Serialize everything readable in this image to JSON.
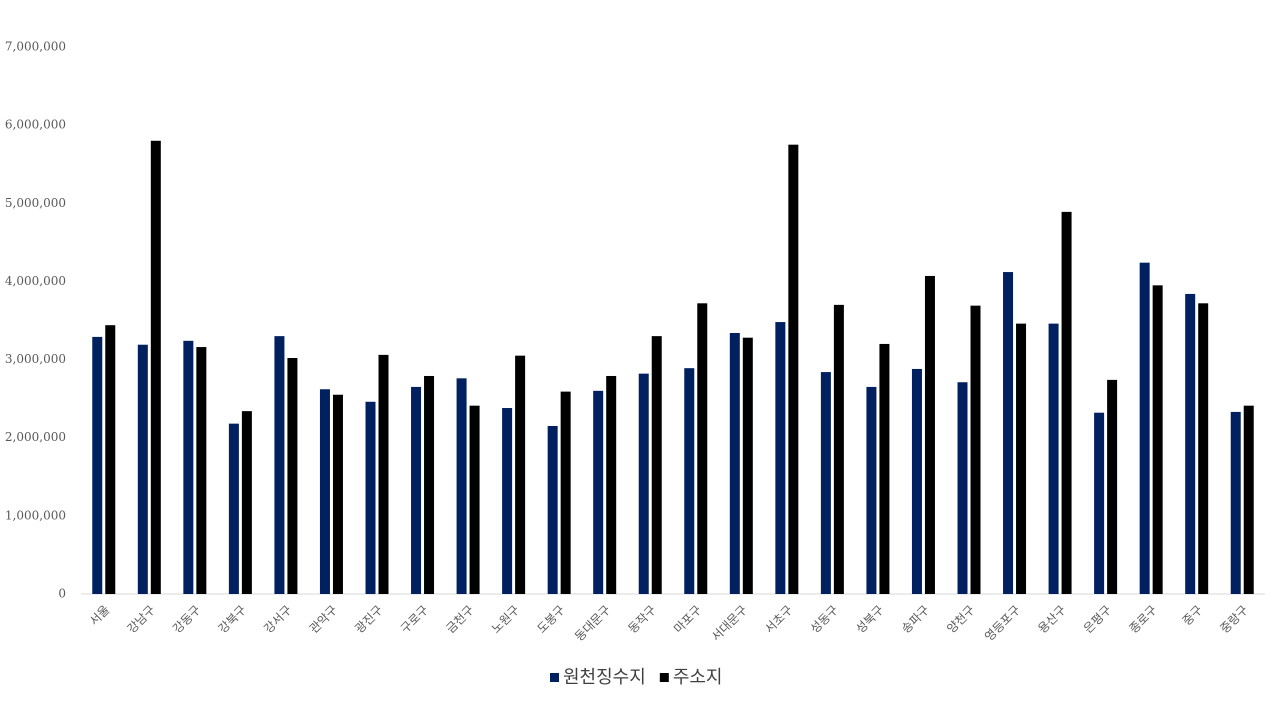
{
  "chart_data": {
    "type": "bar",
    "categories": [
      "서울",
      "강남구",
      "강동구",
      "강북구",
      "강서구",
      "관악구",
      "광진구",
      "구로구",
      "금천구",
      "노원구",
      "도봉구",
      "동대문구",
      "동작구",
      "마포구",
      "서대문구",
      "서초구",
      "성동구",
      "성북구",
      "송파구",
      "양천구",
      "영등포구",
      "용산구",
      "은평구",
      "종로구",
      "중구",
      "중랑구"
    ],
    "series": [
      {
        "name": "원천징수지",
        "color": "#002060",
        "values": [
          3290000,
          3190000,
          3240000,
          2180000,
          3300000,
          2620000,
          2460000,
          2650000,
          2760000,
          2380000,
          2150000,
          2600000,
          2820000,
          2890000,
          3340000,
          3480000,
          2840000,
          2650000,
          2880000,
          2710000,
          4120000,
          3460000,
          2320000,
          4240000,
          3840000,
          2330000
        ]
      },
      {
        "name": "주소지",
        "color": "#000000",
        "values": [
          3440000,
          5800000,
          3160000,
          2340000,
          3020000,
          2550000,
          3060000,
          2790000,
          2410000,
          3050000,
          2590000,
          2790000,
          3300000,
          3720000,
          3280000,
          5750000,
          3700000,
          3200000,
          4070000,
          3690000,
          3460000,
          4890000,
          2740000,
          3950000,
          3720000,
          2410000
        ]
      }
    ],
    "ylim": [
      0,
      7000000
    ],
    "yticks": [
      0,
      {
        "value": 1000000,
        "label": "1,000,000"
      },
      {
        "value": 2000000,
        "label": "2,000,000"
      },
      {
        "value": 3000000,
        "label": "3,000,000"
      },
      {
        "value": 4000000,
        "label": "4,000,000"
      },
      {
        "value": 5000000,
        "label": "5,000,000"
      },
      {
        "value": 6000000,
        "label": "6,000,000"
      },
      {
        "value": 7000000,
        "label": "7,000,000"
      }
    ],
    "grid": false,
    "legend": "bottom"
  }
}
